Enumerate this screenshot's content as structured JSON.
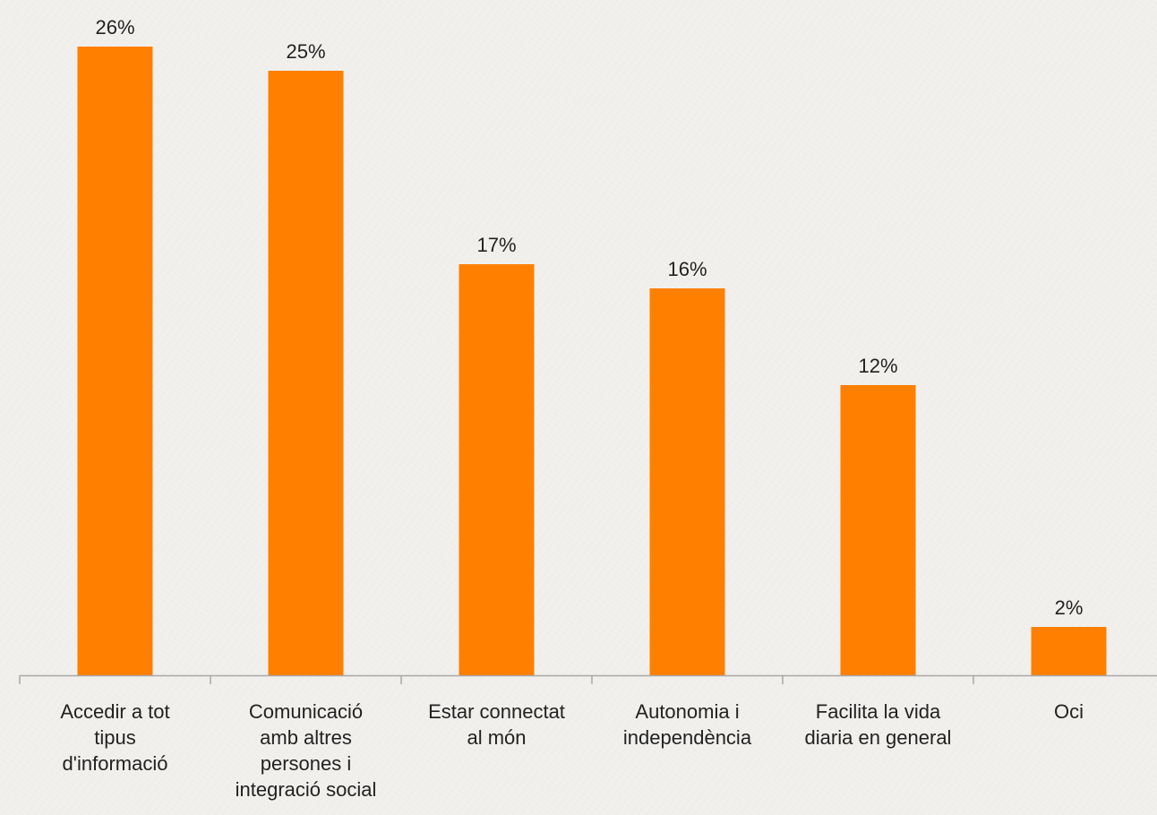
{
  "chart_data": {
    "type": "bar",
    "categories": [
      [
        "Accedir a tot",
        "tipus",
        "d'informació"
      ],
      [
        "Comunicació",
        "amb altres",
        "persones i",
        "integració social"
      ],
      [
        "Estar connectat",
        "al món"
      ],
      [
        "Autonomia i",
        "independència"
      ],
      [
        "Facilita la vida",
        "diaria en general"
      ],
      [
        "Oci"
      ]
    ],
    "values": [
      26,
      25,
      17,
      16,
      12,
      2
    ],
    "data_labels": [
      "26%",
      "25%",
      "17%",
      "16%",
      "12%",
      "2%"
    ],
    "title": "",
    "xlabel": "",
    "ylabel": "",
    "ylim": [
      0,
      26
    ],
    "grid": false,
    "legend": "none",
    "colors": {
      "bar": "#ff7f00",
      "axis": "#a8a8a8",
      "text": "#222222"
    }
  }
}
